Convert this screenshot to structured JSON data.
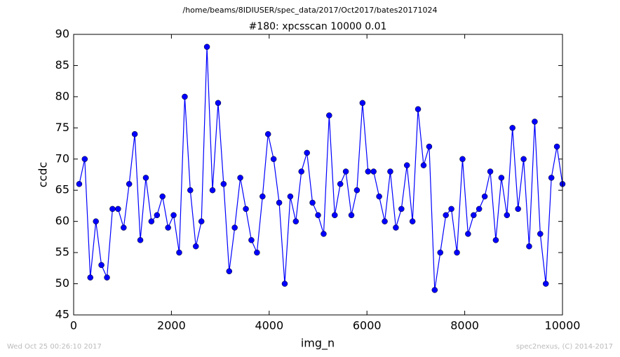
{
  "chart_data": {
    "type": "line",
    "suptitle": "/home/beams/8IDIUSER/spec_data/2017/Oct2017/bates20171024",
    "title": "#180: xpcsscan 10000 0.01",
    "xlabel": "img_n",
    "ylabel": "ccdc",
    "x": [
      114,
      227,
      341,
      455,
      568,
      682,
      795,
      909,
      1023,
      1136,
      1250,
      1364,
      1477,
      1591,
      1705,
      1818,
      1932,
      2045,
      2159,
      2273,
      2386,
      2500,
      2614,
      2727,
      2841,
      2955,
      3068,
      3182,
      3295,
      3409,
      3523,
      3636,
      3750,
      3864,
      3977,
      4091,
      4205,
      4318,
      4432,
      4545,
      4659,
      4773,
      4886,
      5000,
      5114,
      5227,
      5341,
      5455,
      5568,
      5682,
      5795,
      5909,
      6023,
      6136,
      6250,
      6364,
      6477,
      6591,
      6705,
      6818,
      6932,
      7045,
      7159,
      7273,
      7386,
      7500,
      7614,
      7727,
      7841,
      7955,
      8068,
      8182,
      8295,
      8409,
      8523,
      8636,
      8750,
      8864,
      8977,
      9091,
      9205,
      9318,
      9432,
      9545,
      9659,
      9773,
      9886,
      10000
    ],
    "series": [
      {
        "color": "#0000ff",
        "values": [
          66,
          70,
          51,
          60,
          53,
          51,
          62,
          62,
          59,
          66,
          74,
          57,
          67,
          60,
          61,
          64,
          59,
          61,
          55,
          80,
          65,
          56,
          60,
          88,
          65,
          79,
          66,
          52,
          59,
          67,
          62,
          57,
          55,
          64,
          74,
          70,
          63,
          50,
          64,
          60,
          68,
          71,
          63,
          61,
          58,
          77,
          61,
          66,
          68,
          61,
          65,
          79,
          68,
          68,
          64,
          60,
          68,
          59,
          62,
          69,
          60,
          78,
          69,
          72,
          49,
          55,
          61,
          62,
          55,
          70,
          58,
          61,
          62,
          64,
          68,
          57,
          67,
          61,
          75,
          62,
          70,
          56,
          76,
          58,
          50,
          67,
          72,
          66
        ]
      }
    ],
    "xlim": [
      0,
      10000
    ],
    "xticks": [
      0,
      2000,
      4000,
      6000,
      8000,
      10000
    ],
    "ylim": [
      45,
      90
    ],
    "yticks": [
      45,
      50,
      55,
      60,
      65,
      70,
      75,
      80,
      85,
      90
    ],
    "footer_left": "Wed Oct 25 00:26:10 2017",
    "footer_right": "spec2nexus, (C) 2014-2017"
  }
}
